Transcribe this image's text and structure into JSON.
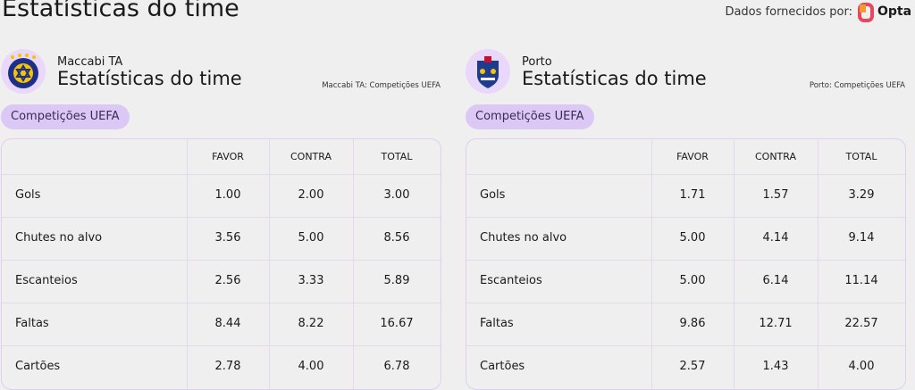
{
  "header": {
    "title": "Estatísticas do time",
    "source_label": "Dados fornecidos por:",
    "source_brand": "Opta"
  },
  "panels": [
    {
      "team": "Maccabi TA",
      "subtitle": "Estatísticas do time",
      "source": "Maccabi TA: Competições UEFA",
      "competition": "Competições UEFA",
      "table": {
        "columns": [
          "FAVOR",
          "CONTRA",
          "TOTAL"
        ],
        "rows": [
          [
            "Gols",
            "1.00",
            "2.00",
            "3.00"
          ],
          [
            "Chutes no alvo",
            "3.56",
            "5.00",
            "8.56"
          ],
          [
            "Escanteios",
            "2.56",
            "3.33",
            "5.89"
          ],
          [
            "Faltas",
            "8.44",
            "8.22",
            "16.67"
          ],
          [
            "Cartões",
            "2.78",
            "4.00",
            "6.78"
          ]
        ]
      }
    },
    {
      "team": "Porto",
      "subtitle": "Estatísticas do time",
      "source": "Porto: Competições UEFA",
      "competition": "Competições UEFA",
      "table": {
        "columns": [
          "FAVOR",
          "CONTRA",
          "TOTAL"
        ],
        "rows": [
          [
            "Gols",
            "1.71",
            "1.57",
            "3.29"
          ],
          [
            "Chutes no alvo",
            "5.00",
            "4.14",
            "9.14"
          ],
          [
            "Escanteios",
            "5.00",
            "6.14",
            "11.14"
          ],
          [
            "Faltas",
            "9.86",
            "12.71",
            "22.57"
          ],
          [
            "Cartões",
            "2.57",
            "1.43",
            "4.00"
          ]
        ]
      }
    }
  ]
}
